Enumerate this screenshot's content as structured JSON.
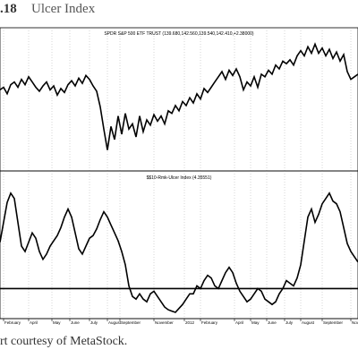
{
  "figure": {
    "number": ".18",
    "title": "Ulcer Index"
  },
  "caption": "rt courtesy of MetaStock.",
  "chart_data": [
    {
      "type": "line",
      "title": "SPDR S&P 500 ETF TRUST (139.680,142.560,139.540,142.410,+2.38000)",
      "x_range": [
        0,
        100
      ],
      "ylim": [
        0,
        100
      ],
      "grid": true,
      "series": [
        {
          "color": "#000000",
          "points": [
            [
              0,
              60
            ],
            [
              1,
              62
            ],
            [
              2,
              57
            ],
            [
              3,
              64
            ],
            [
              4,
              66
            ],
            [
              5,
              62
            ],
            [
              6,
              68
            ],
            [
              7,
              64
            ],
            [
              8,
              70
            ],
            [
              9,
              66
            ],
            [
              10,
              62
            ],
            [
              11,
              59
            ],
            [
              12,
              63
            ],
            [
              13,
              66
            ],
            [
              14,
              60
            ],
            [
              15,
              63
            ],
            [
              16,
              56
            ],
            [
              17,
              61
            ],
            [
              18,
              58
            ],
            [
              19,
              64
            ],
            [
              20,
              67
            ],
            [
              21,
              63
            ],
            [
              22,
              69
            ],
            [
              23,
              65
            ],
            [
              24,
              71
            ],
            [
              25,
              68
            ],
            [
              26,
              63
            ],
            [
              27,
              59
            ],
            [
              28,
              47
            ],
            [
              29,
              30
            ],
            [
              30,
              14
            ],
            [
              31,
              32
            ],
            [
              32,
              22
            ],
            [
              33,
              40
            ],
            [
              34,
              26
            ],
            [
              35,
              42
            ],
            [
              36,
              30
            ],
            [
              37,
              34
            ],
            [
              38,
              24
            ],
            [
              39,
              40
            ],
            [
              40,
              28
            ],
            [
              41,
              37
            ],
            [
              42,
              33
            ],
            [
              43,
              41
            ],
            [
              44,
              36
            ],
            [
              45,
              40
            ],
            [
              46,
              34
            ],
            [
              47,
              44
            ],
            [
              48,
              42
            ],
            [
              49,
              48
            ],
            [
              50,
              44
            ],
            [
              51,
              51
            ],
            [
              52,
              48
            ],
            [
              53,
              54
            ],
            [
              54,
              50
            ],
            [
              55,
              57
            ],
            [
              56,
              53
            ],
            [
              57,
              61
            ],
            [
              58,
              58
            ],
            [
              59,
              62
            ],
            [
              60,
              66
            ],
            [
              61,
              70
            ],
            [
              62,
              74
            ],
            [
              63,
              68
            ],
            [
              64,
              75
            ],
            [
              65,
              71
            ],
            [
              66,
              76
            ],
            [
              67,
              70
            ],
            [
              68,
              60
            ],
            [
              69,
              66
            ],
            [
              70,
              63
            ],
            [
              71,
              70
            ],
            [
              72,
              62
            ],
            [
              73,
              72
            ],
            [
              74,
              70
            ],
            [
              75,
              75
            ],
            [
              76,
              72
            ],
            [
              77,
              79
            ],
            [
              78,
              76
            ],
            [
              79,
              82
            ],
            [
              80,
              80
            ],
            [
              81,
              83
            ],
            [
              82,
              79
            ],
            [
              83,
              86
            ],
            [
              84,
              90
            ],
            [
              85,
              86
            ],
            [
              86,
              93
            ],
            [
              87,
              88
            ],
            [
              88,
              95
            ],
            [
              89,
              88
            ],
            [
              90,
              92
            ],
            [
              91,
              86
            ],
            [
              92,
              91
            ],
            [
              93,
              84
            ],
            [
              94,
              89
            ],
            [
              95,
              82
            ],
            [
              96,
              87
            ],
            [
              97,
              74
            ],
            [
              98,
              68
            ],
            [
              99,
              70
            ],
            [
              100,
              72
            ]
          ]
        }
      ]
    },
    {
      "type": "line",
      "title": "$$10-Rmk-Ulcer Index (4.35551)",
      "x_range": [
        0,
        100
      ],
      "ylim": [
        0,
        100
      ],
      "grid": true,
      "reference_line": 20,
      "x_tick_labels": [
        {
          "x": 1,
          "label": "February"
        },
        {
          "x": 8,
          "label": "April"
        },
        {
          "x": 14.5,
          "label": "May"
        },
        {
          "x": 19.5,
          "label": "June"
        },
        {
          "x": 25,
          "label": "July"
        },
        {
          "x": 30,
          "label": "August"
        },
        {
          "x": 33.5,
          "label": "September"
        },
        {
          "x": 43,
          "label": "November"
        },
        {
          "x": 51.5,
          "label": "2012"
        },
        {
          "x": 56,
          "label": "February"
        },
        {
          "x": 65.5,
          "label": "April"
        },
        {
          "x": 70,
          "label": "May"
        },
        {
          "x": 74.5,
          "label": "June"
        },
        {
          "x": 79.5,
          "label": "July"
        },
        {
          "x": 84,
          "label": "August"
        },
        {
          "x": 90,
          "label": "September"
        },
        {
          "x": 98,
          "label": "Nove"
        }
      ],
      "series": [
        {
          "color": "#000000",
          "points": [
            [
              0,
              55
            ],
            [
              1,
              70
            ],
            [
              2,
              85
            ],
            [
              3,
              92
            ],
            [
              4,
              88
            ],
            [
              5,
              70
            ],
            [
              6,
              52
            ],
            [
              7,
              48
            ],
            [
              8,
              55
            ],
            [
              9,
              62
            ],
            [
              10,
              58
            ],
            [
              11,
              48
            ],
            [
              12,
              42
            ],
            [
              13,
              46
            ],
            [
              14,
              52
            ],
            [
              15,
              56
            ],
            [
              16,
              60
            ],
            [
              17,
              66
            ],
            [
              18,
              74
            ],
            [
              19,
              80
            ],
            [
              20,
              74
            ],
            [
              21,
              62
            ],
            [
              22,
              50
            ],
            [
              23,
              46
            ],
            [
              24,
              52
            ],
            [
              25,
              58
            ],
            [
              26,
              60
            ],
            [
              27,
              65
            ],
            [
              28,
              72
            ],
            [
              29,
              78
            ],
            [
              30,
              74
            ],
            [
              31,
              68
            ],
            [
              32,
              62
            ],
            [
              33,
              56
            ],
            [
              34,
              48
            ],
            [
              35,
              38
            ],
            [
              36,
              22
            ],
            [
              37,
              14
            ],
            [
              38,
              12
            ],
            [
              39,
              16
            ],
            [
              40,
              12
            ],
            [
              41,
              10
            ],
            [
              42,
              16
            ],
            [
              43,
              18
            ],
            [
              44,
              14
            ],
            [
              45,
              10
            ],
            [
              46,
              6
            ],
            [
              47,
              4
            ],
            [
              48,
              3
            ],
            [
              49,
              2
            ],
            [
              50,
              5
            ],
            [
              51,
              8
            ],
            [
              52,
              12
            ],
            [
              53,
              16
            ],
            [
              54,
              16
            ],
            [
              55,
              22
            ],
            [
              56,
              20
            ],
            [
              57,
              26
            ],
            [
              58,
              30
            ],
            [
              59,
              28
            ],
            [
              60,
              22
            ],
            [
              61,
              20
            ],
            [
              62,
              26
            ],
            [
              63,
              32
            ],
            [
              64,
              36
            ],
            [
              65,
              32
            ],
            [
              66,
              24
            ],
            [
              67,
              18
            ],
            [
              68,
              14
            ],
            [
              69,
              10
            ],
            [
              70,
              12
            ],
            [
              71,
              16
            ],
            [
              72,
              20
            ],
            [
              73,
              18
            ],
            [
              74,
              12
            ],
            [
              75,
              10
            ],
            [
              76,
              8
            ],
            [
              77,
              10
            ],
            [
              78,
              16
            ],
            [
              79,
              20
            ],
            [
              80,
              26
            ],
            [
              81,
              24
            ],
            [
              82,
              22
            ],
            [
              83,
              28
            ],
            [
              84,
              38
            ],
            [
              85,
              56
            ],
            [
              86,
              74
            ],
            [
              87,
              80
            ],
            [
              88,
              70
            ],
            [
              89,
              76
            ],
            [
              90,
              84
            ],
            [
              91,
              88
            ],
            [
              92,
              92
            ],
            [
              93,
              86
            ],
            [
              94,
              84
            ],
            [
              95,
              78
            ],
            [
              96,
              66
            ],
            [
              97,
              54
            ],
            [
              98,
              48
            ],
            [
              99,
              44
            ],
            [
              100,
              40
            ]
          ]
        }
      ]
    }
  ]
}
